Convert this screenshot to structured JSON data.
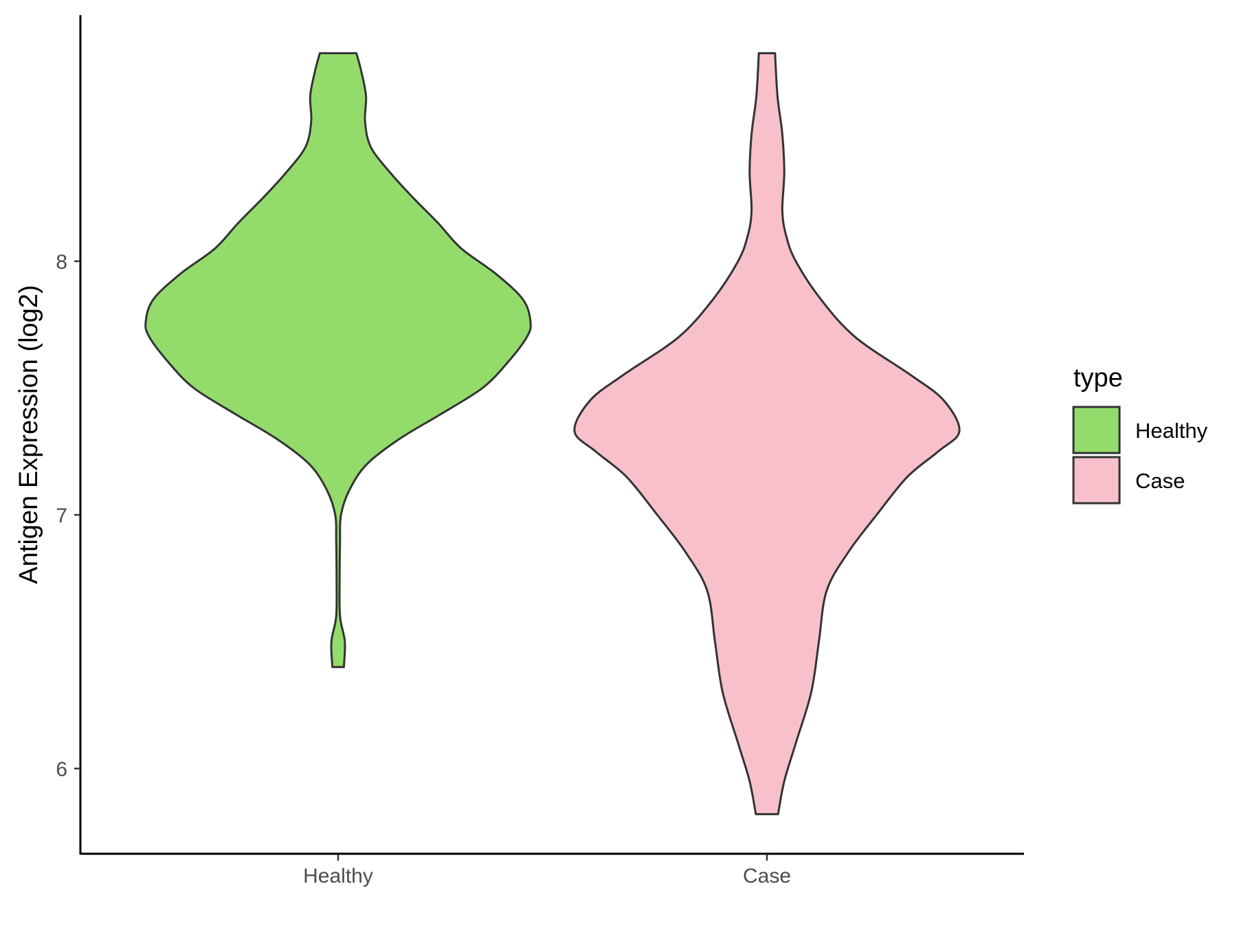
{
  "chart_data": {
    "type": "violin",
    "title": "",
    "xlabel": "",
    "ylabel": "Antigen Expression (log2)",
    "ylim": [
      5.67,
      8.98
    ],
    "yticks": [
      6,
      7,
      8
    ],
    "grid": false,
    "categories": [
      "Healthy",
      "Case"
    ],
    "legend": {
      "title": "type",
      "position": "right",
      "entries": [
        "Healthy",
        "Case"
      ]
    },
    "series": [
      {
        "name": "Healthy",
        "color": "#93dc6b",
        "y_min": 6.4,
        "y_max": 8.82,
        "density_profile": [
          [
            6.4,
            0.03
          ],
          [
            6.5,
            0.035
          ],
          [
            6.6,
            0.01
          ],
          [
            6.75,
            0.008
          ],
          [
            6.9,
            0.01
          ],
          [
            7.0,
            0.015
          ],
          [
            7.1,
            0.06
          ],
          [
            7.2,
            0.15
          ],
          [
            7.3,
            0.32
          ],
          [
            7.4,
            0.54
          ],
          [
            7.5,
            0.75
          ],
          [
            7.6,
            0.88
          ],
          [
            7.7,
            0.98
          ],
          [
            7.76,
            1.0
          ],
          [
            7.85,
            0.96
          ],
          [
            7.95,
            0.82
          ],
          [
            8.05,
            0.64
          ],
          [
            8.15,
            0.52
          ],
          [
            8.25,
            0.39
          ],
          [
            8.35,
            0.27
          ],
          [
            8.45,
            0.17
          ],
          [
            8.55,
            0.14
          ],
          [
            8.65,
            0.145
          ],
          [
            8.75,
            0.12
          ],
          [
            8.82,
            0.095
          ]
        ]
      },
      {
        "name": "Case",
        "color": "#f8c0cb",
        "y_min": 5.82,
        "y_max": 8.82,
        "density_profile": [
          [
            5.82,
            0.058
          ],
          [
            5.95,
            0.09
          ],
          [
            6.1,
            0.15
          ],
          [
            6.3,
            0.23
          ],
          [
            6.5,
            0.27
          ],
          [
            6.7,
            0.31
          ],
          [
            6.85,
            0.42
          ],
          [
            7.0,
            0.57
          ],
          [
            7.15,
            0.73
          ],
          [
            7.25,
            0.89
          ],
          [
            7.33,
            1.0
          ],
          [
            7.45,
            0.92
          ],
          [
            7.55,
            0.75
          ],
          [
            7.7,
            0.46
          ],
          [
            7.85,
            0.28
          ],
          [
            8.0,
            0.15
          ],
          [
            8.1,
            0.1
          ],
          [
            8.2,
            0.08
          ],
          [
            8.35,
            0.09
          ],
          [
            8.5,
            0.08
          ],
          [
            8.65,
            0.055
          ],
          [
            8.82,
            0.042
          ]
        ]
      }
    ]
  }
}
